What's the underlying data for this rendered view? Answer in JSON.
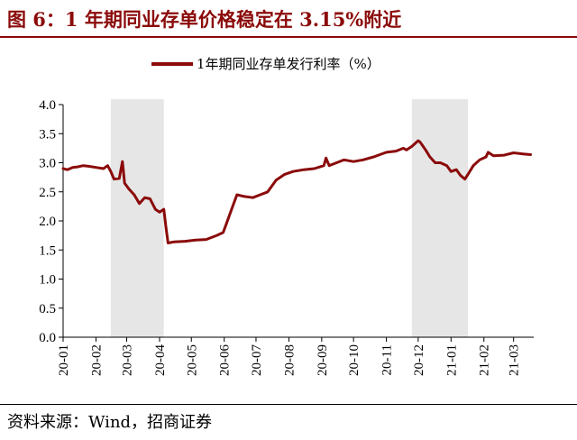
{
  "header": {
    "title": "图 6：1 年期同业存单价格稳定在 3.15%附近"
  },
  "footer": {
    "source": "资料来源：Wind，招商证券"
  },
  "colors": {
    "accent": "#8b0a0a",
    "shade": "#e6e6e6"
  },
  "chart_data": {
    "type": "line",
    "title": "",
    "xlabel": "",
    "ylabel": "",
    "ylim": [
      0,
      4
    ],
    "yticks": [
      "0.0",
      "0.5",
      "1.0",
      "1.5",
      "2.0",
      "2.5",
      "3.0",
      "3.5",
      "4.0"
    ],
    "xticks": [
      "20-01",
      "20-02",
      "20-03",
      "20-04",
      "20-05",
      "20-06",
      "20-07",
      "20-08",
      "20-09",
      "20-10",
      "20-11",
      "20-12",
      "21-01",
      "21-02",
      "21-03"
    ],
    "grid": false,
    "legend_position": "top-center",
    "shaded_periods": [
      {
        "start": "2020-02-15",
        "end": "2020-04-05"
      },
      {
        "start": "2020-11-25",
        "end": "2021-01-17"
      }
    ],
    "series": [
      {
        "name": "1年期同业存单发行利率（%）",
        "color": "#8b0a0a",
        "points": [
          [
            "2020-01-01",
            2.9
          ],
          [
            "2020-01-05",
            2.88
          ],
          [
            "2020-01-10",
            2.92
          ],
          [
            "2020-01-15",
            2.93
          ],
          [
            "2020-01-20",
            2.95
          ],
          [
            "2020-01-25",
            2.94
          ],
          [
            "2020-02-01",
            2.92
          ],
          [
            "2020-02-08",
            2.9
          ],
          [
            "2020-02-12",
            2.95
          ],
          [
            "2020-02-15",
            2.85
          ],
          [
            "2020-02-18",
            2.72
          ],
          [
            "2020-02-23",
            2.73
          ],
          [
            "2020-02-26",
            3.02
          ],
          [
            "2020-02-28",
            2.65
          ],
          [
            "2020-03-03",
            2.55
          ],
          [
            "2020-03-08",
            2.45
          ],
          [
            "2020-03-13",
            2.3
          ],
          [
            "2020-03-18",
            2.4
          ],
          [
            "2020-03-23",
            2.38
          ],
          [
            "2020-03-28",
            2.2
          ],
          [
            "2020-04-01",
            2.15
          ],
          [
            "2020-04-05",
            2.2
          ],
          [
            "2020-04-07",
            1.9
          ],
          [
            "2020-04-09",
            1.62
          ],
          [
            "2020-04-15",
            1.64
          ],
          [
            "2020-04-25",
            1.65
          ],
          [
            "2020-05-05",
            1.67
          ],
          [
            "2020-05-15",
            1.68
          ],
          [
            "2020-05-25",
            1.75
          ],
          [
            "2020-05-31",
            1.8
          ],
          [
            "2020-06-03",
            1.95
          ],
          [
            "2020-06-08",
            2.2
          ],
          [
            "2020-06-13",
            2.45
          ],
          [
            "2020-06-20",
            2.42
          ],
          [
            "2020-06-28",
            2.4
          ],
          [
            "2020-07-05",
            2.45
          ],
          [
            "2020-07-12",
            2.5
          ],
          [
            "2020-07-20",
            2.7
          ],
          [
            "2020-07-28",
            2.8
          ],
          [
            "2020-08-05",
            2.85
          ],
          [
            "2020-08-15",
            2.88
          ],
          [
            "2020-08-25",
            2.9
          ],
          [
            "2020-09-03",
            2.95
          ],
          [
            "2020-09-05",
            3.08
          ],
          [
            "2020-09-08",
            2.95
          ],
          [
            "2020-09-15",
            3.0
          ],
          [
            "2020-09-22",
            3.05
          ],
          [
            "2020-10-01",
            3.02
          ],
          [
            "2020-10-10",
            3.05
          ],
          [
            "2020-10-20",
            3.1
          ],
          [
            "2020-11-01",
            3.18
          ],
          [
            "2020-11-10",
            3.2
          ],
          [
            "2020-11-17",
            3.25
          ],
          [
            "2020-11-20",
            3.22
          ],
          [
            "2020-11-25",
            3.28
          ],
          [
            "2020-12-01",
            3.38
          ],
          [
            "2020-12-03",
            3.35
          ],
          [
            "2020-12-08",
            3.22
          ],
          [
            "2020-12-12",
            3.1
          ],
          [
            "2020-12-17",
            3.0
          ],
          [
            "2020-12-22",
            3.0
          ],
          [
            "2020-12-28",
            2.95
          ],
          [
            "2021-01-01",
            2.85
          ],
          [
            "2021-01-06",
            2.88
          ],
          [
            "2021-01-10",
            2.78
          ],
          [
            "2021-01-14",
            2.72
          ],
          [
            "2021-01-17",
            2.8
          ],
          [
            "2021-01-22",
            2.95
          ],
          [
            "2021-01-28",
            3.05
          ],
          [
            "2021-02-03",
            3.1
          ],
          [
            "2021-02-05",
            3.18
          ],
          [
            "2021-02-10",
            3.12
          ],
          [
            "2021-02-20",
            3.13
          ],
          [
            "2021-03-01",
            3.17
          ],
          [
            "2021-03-10",
            3.15
          ],
          [
            "2021-03-17",
            3.14
          ]
        ]
      }
    ]
  }
}
